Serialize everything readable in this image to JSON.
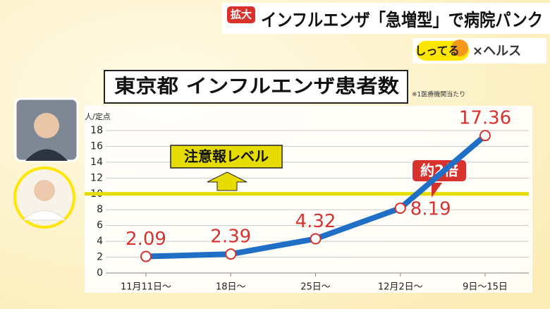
{
  "header": {
    "badge": "拡大",
    "headline": "インフルエンザ「急増型」で病院パンク",
    "corner": "しってる",
    "series_name": "×ヘルス"
  },
  "chart_data": {
    "type": "line",
    "title": "東京都 インフルエンザ患者数",
    "note": "※1医療機関当たり",
    "y_label": "人/定点",
    "categories": [
      "11月11日～",
      "18日～",
      "25日～",
      "12月2日～",
      "9日～15日"
    ],
    "series": [
      {
        "name": "患者数",
        "color": "#1f6fc6",
        "values": [
          2.09,
          2.39,
          4.32,
          8.19,
          17.36
        ]
      }
    ],
    "label_color": "#d8322c",
    "ylim": [
      0,
      18
    ],
    "yticks": [
      0,
      2,
      4,
      6,
      8,
      10,
      12,
      14,
      16,
      18
    ],
    "grid": true,
    "threshold": {
      "value": 10,
      "label": "注意報レベル",
      "color": "#e6dc00"
    },
    "annotation": "約2倍"
  }
}
